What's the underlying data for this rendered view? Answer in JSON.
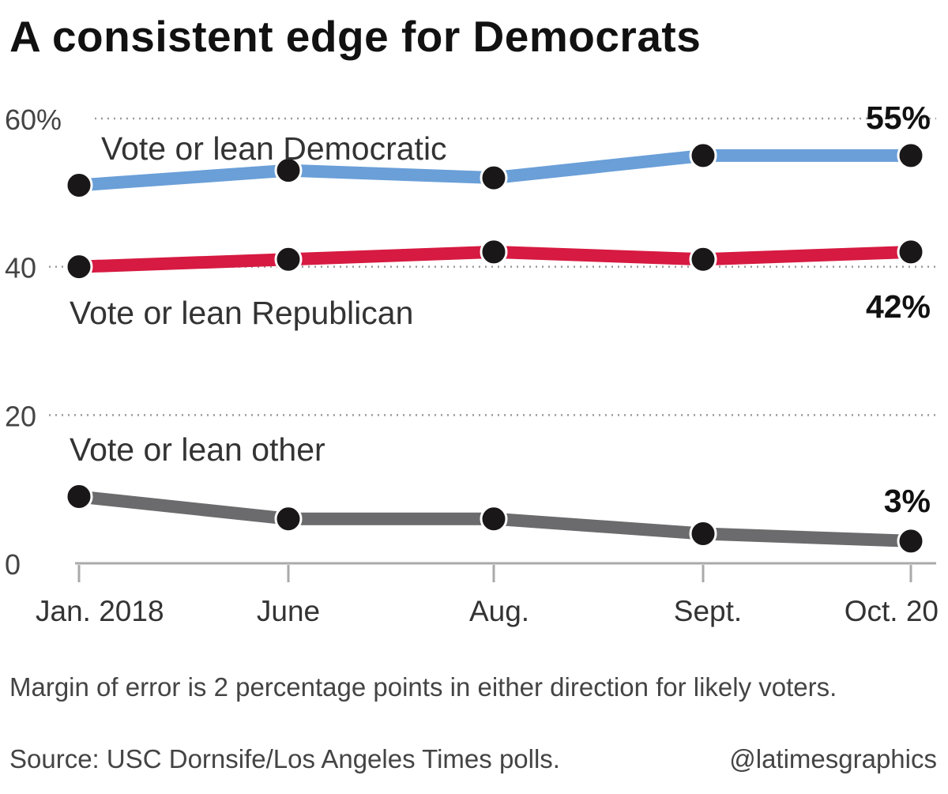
{
  "title": "A consistent edge for Democrats",
  "note": "Margin of error is 2 percentage points in either direction for likely voters.",
  "source": "Source: USC Dornsife/Los Angeles Times polls.",
  "credit": "@latimesgraphics",
  "chart_data": {
    "type": "line",
    "title": "A consistent edge for Democrats",
    "categories": [
      "Jan. 2018",
      "June",
      "Aug.",
      "Sept.",
      "Oct. 20"
    ],
    "y_ticks": [
      "60%",
      "40",
      "20",
      "0"
    ],
    "y_tick_values": [
      60,
      40,
      20,
      0
    ],
    "ylim": [
      0,
      60
    ],
    "grid": "dotted",
    "series": [
      {
        "name": "Vote or lean Democratic",
        "color": "#6a9fd8",
        "values": [
          51,
          53,
          52,
          55,
          55
        ],
        "end_label": "55%"
      },
      {
        "name": "Vote or lean Republican",
        "color": "#d61a41",
        "values": [
          40,
          41,
          42,
          41,
          42
        ],
        "end_label": "42%"
      },
      {
        "name": "Vote or lean other",
        "color": "#6b6b6d",
        "values": [
          9,
          6,
          6,
          4,
          3
        ],
        "end_label": "3%"
      }
    ]
  }
}
